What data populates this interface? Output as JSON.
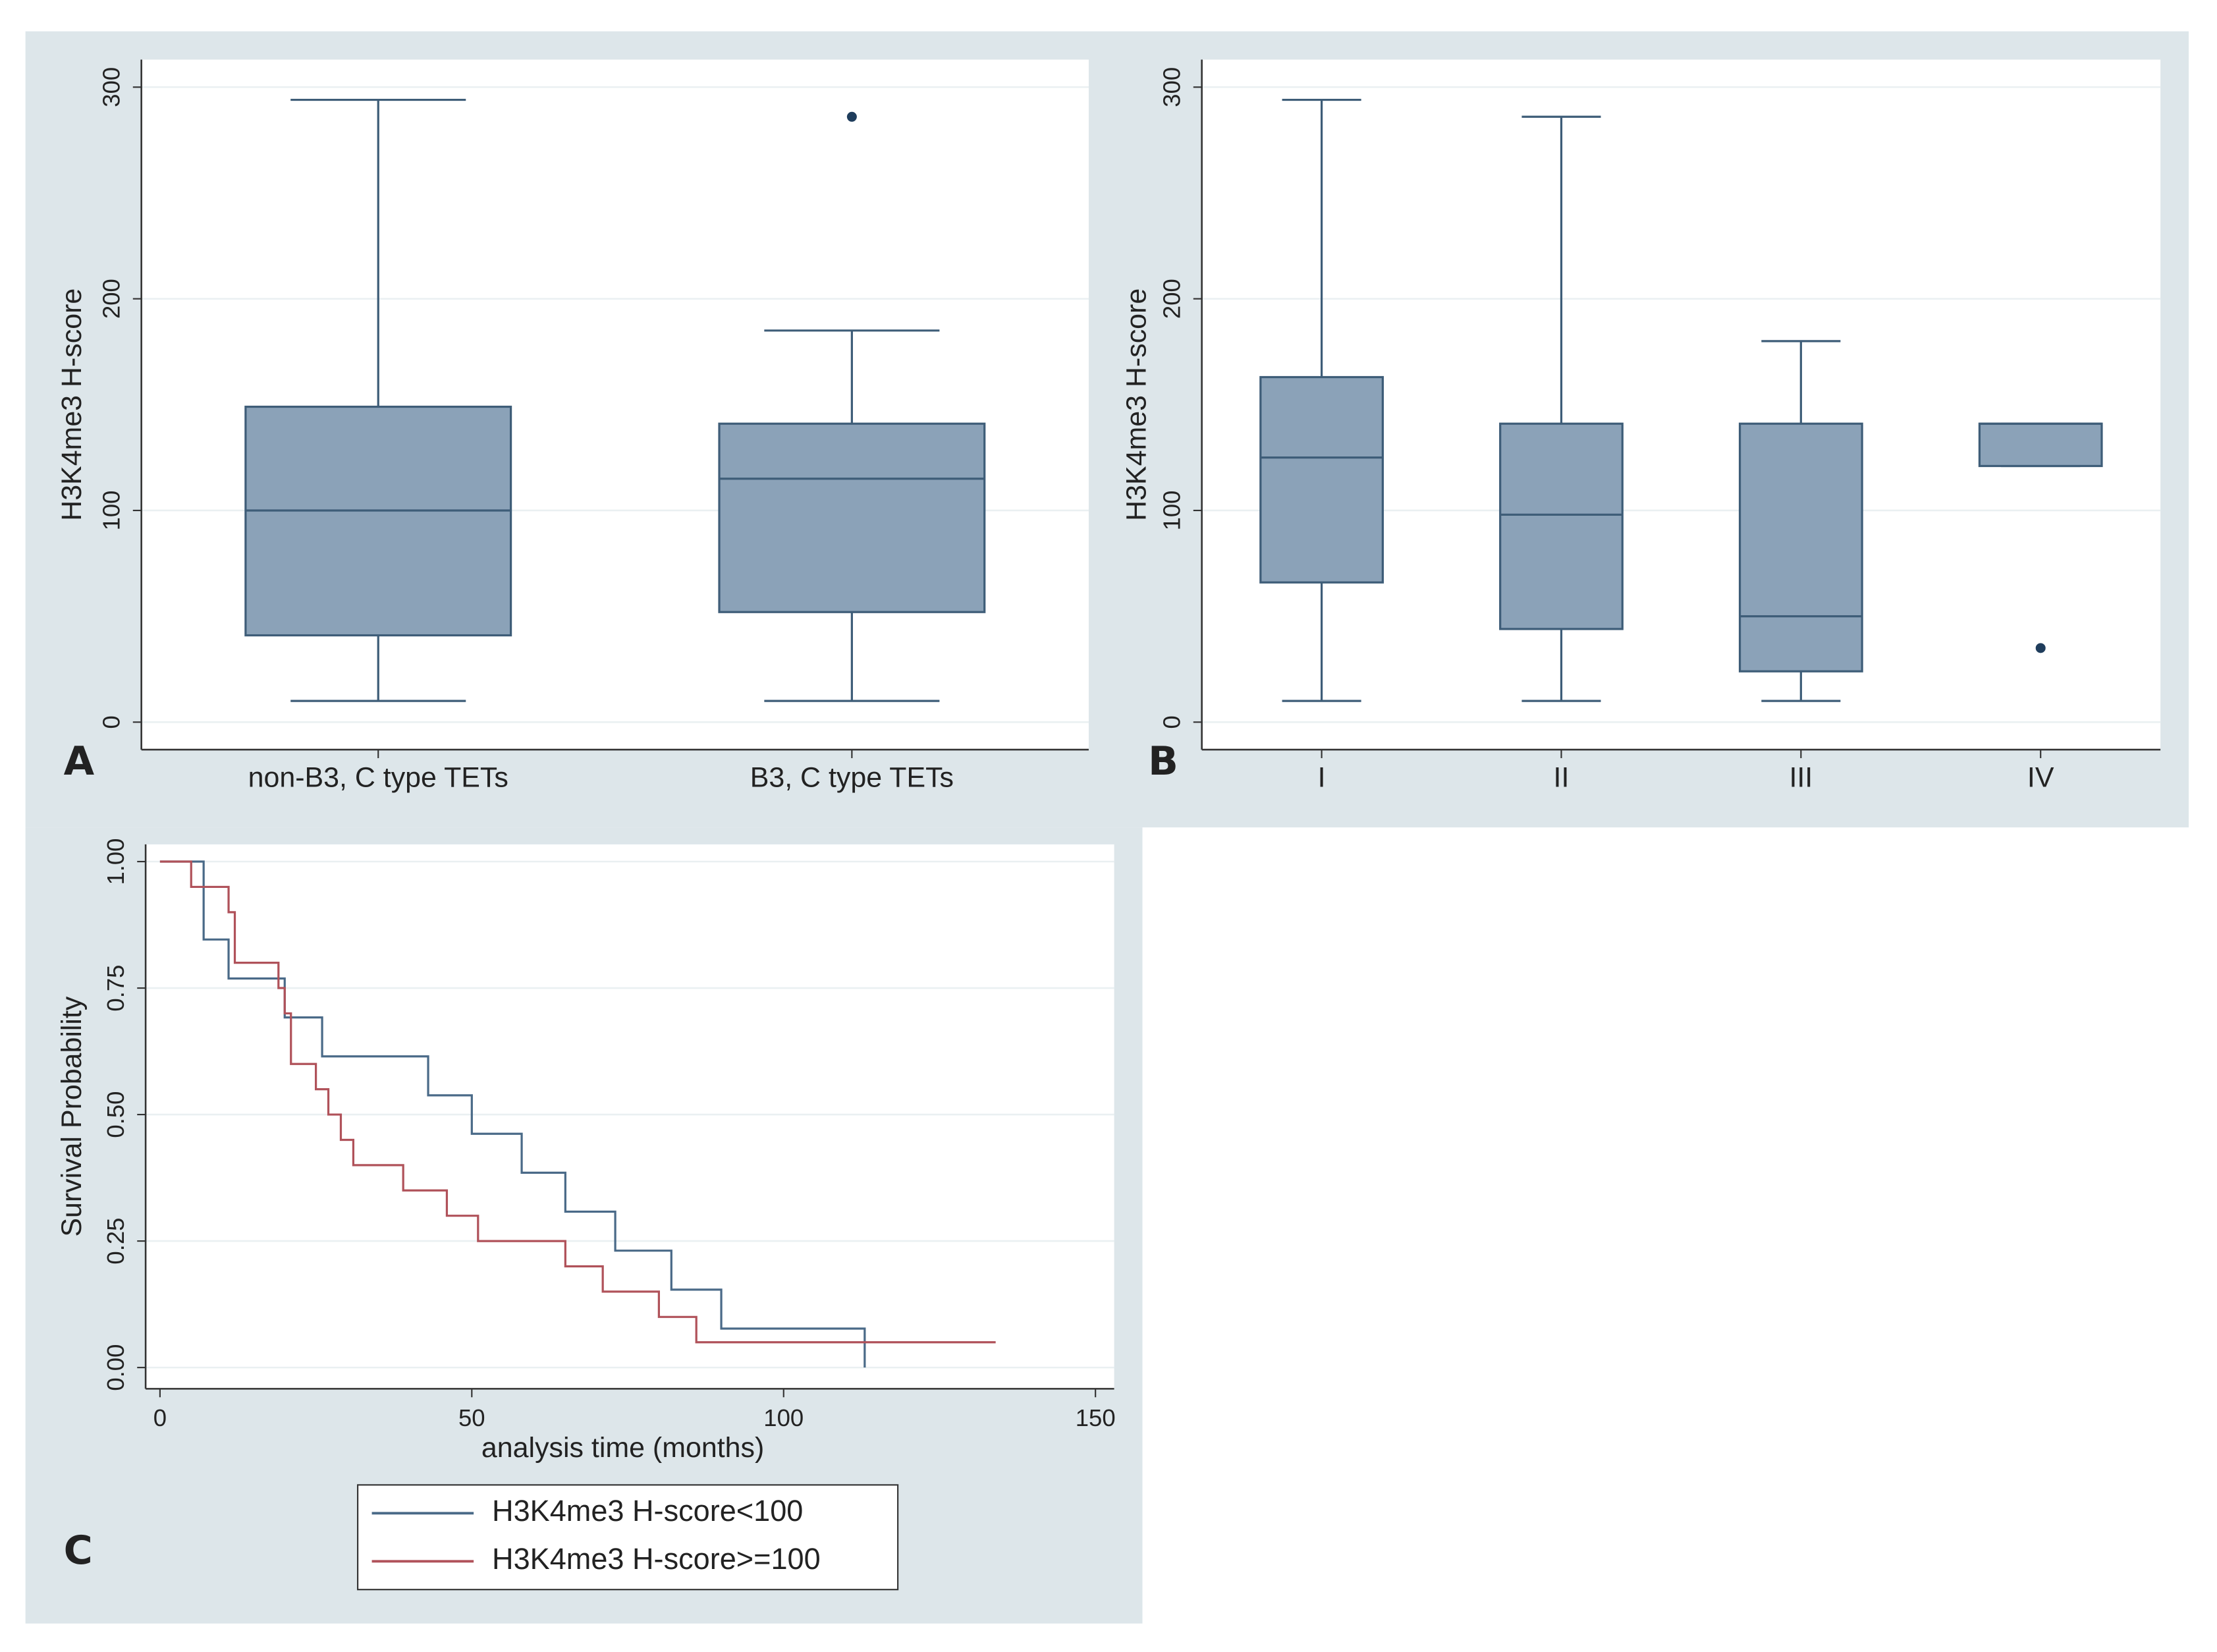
{
  "chart_data": [
    {
      "type": "box",
      "panel_label": "A",
      "y_label": "H3K4me3 H-score",
      "categories": [
        "non-B3, C type TETs",
        "B3, C type TETs"
      ],
      "stats": [
        {
          "min": 10,
          "q1": 41,
          "median": 100,
          "q3": 149,
          "max": 294,
          "outliers": []
        },
        {
          "min": 10,
          "q1": 52,
          "median": 115,
          "q3": 141,
          "max": 185,
          "outliers": [
            286
          ]
        }
      ],
      "color": "#8ba2b8",
      "ylim": [
        -13,
        313
      ],
      "yticks": [
        0,
        100,
        200,
        300
      ],
      "grid": true
    },
    {
      "type": "box",
      "panel_label": "B",
      "y_label": "H3K4me3 H-score",
      "categories": [
        "I",
        "II",
        "III",
        "IV"
      ],
      "stats": [
        {
          "min": 10,
          "q1": 66,
          "median": 125,
          "q3": 163,
          "max": 294,
          "outliers": []
        },
        {
          "min": 10,
          "q1": 44,
          "median": 98,
          "q3": 141,
          "max": 286,
          "outliers": []
        },
        {
          "min": 10,
          "q1": 24,
          "median": 50,
          "q3": 141,
          "max": 180,
          "outliers": []
        },
        {
          "min": 121,
          "q1": 121,
          "median": 141,
          "q3": 141,
          "max": 141,
          "outliers": [
            35
          ]
        }
      ],
      "color": "#8ba2b8",
      "ylim": [
        -13,
        313
      ],
      "yticks": [
        0,
        100,
        200,
        300
      ],
      "grid": true
    },
    {
      "type": "line",
      "drawstyle": "steps-post",
      "panel_label": "C",
      "x_label": "analysis time (months)",
      "y_label": "Survival Probability",
      "series": [
        {
          "name": "H3K4me3 H-score<100",
          "color": "#4a6a88",
          "x": [
            0,
            7,
            11,
            20,
            26,
            43,
            50,
            58,
            65,
            73,
            82,
            90,
            113
          ],
          "values": [
            1,
            0.846,
            0.769,
            0.692,
            0.615,
            0.538,
            0.462,
            0.385,
            0.308,
            0.231,
            0.154,
            0.077,
            0
          ]
        },
        {
          "name": "H3K4me3 H-score>=100",
          "color": "#b0525a",
          "x": [
            0,
            5,
            11,
            12,
            19,
            20,
            21,
            25,
            27,
            29,
            31,
            39,
            46,
            51,
            65,
            71,
            80,
            86,
            134
          ],
          "values": [
            1,
            0.95,
            0.9,
            0.8,
            0.75,
            0.7,
            0.6,
            0.55,
            0.5,
            0.45,
            0.4,
            0.35,
            0.3,
            0.25,
            0.2,
            0.15,
            0.1,
            0.05,
            0.05
          ]
        }
      ],
      "xlim": [
        -2.3,
        153
      ],
      "ylim": [
        -0.042,
        1.034
      ],
      "xticks": [
        0,
        50,
        100,
        150
      ],
      "yticks": [
        {
          "value": 0,
          "label": "0.00"
        },
        {
          "value": 0.25,
          "label": "0.25"
        },
        {
          "value": 0.5,
          "label": "0.50"
        },
        {
          "value": 0.75,
          "label": "0.75"
        },
        {
          "value": 1,
          "label": "1.00"
        }
      ],
      "grid": true,
      "legend": "bottom"
    }
  ]
}
